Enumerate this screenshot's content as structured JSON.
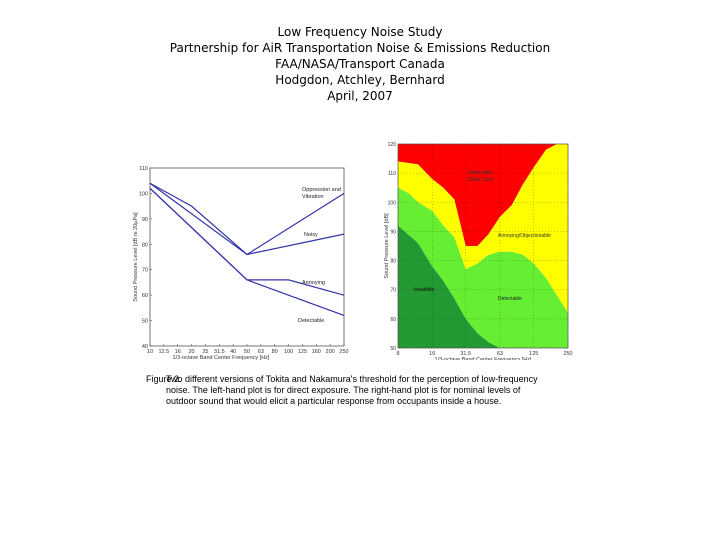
{
  "header": {
    "line1": "Low Frequency Noise Study",
    "line2": "Partnership for AiR Transportation Noise & Emissions Reduction",
    "line3": "FAA/NASA/Transport Canada",
    "line4": "Hodgdon, Atchley, Bernhard",
    "line5": "April, 2007"
  },
  "caption": {
    "label": "Figure 2.",
    "lines": [
      "Two different versions of Tokita and Nakamura's threshold for the perception of low-frequency",
      "noise.  The left-hand plot is for direct exposure.  The right-hand plot is for nominal levels of",
      "outdoor sound that would elicit a particular response from occupants inside a house."
    ]
  },
  "colors": {
    "line": "#3333aa",
    "red": "#ff0000",
    "yellow": "#ffff00",
    "lightgreen": "#66ee33",
    "darkgreen": "#229933"
  },
  "chart_data": [
    {
      "type": "line",
      "title": "",
      "xlabel": "1/3-octave Band Center Frequency [Hz]",
      "ylabel": "Sound Pressure Level [dB re 20µPa]",
      "x_ticks": [
        "10",
        "12.5",
        "16",
        "20",
        "25",
        "31.5",
        "40",
        "50",
        "63",
        "80",
        "100",
        "125",
        "160",
        "200",
        "250"
      ],
      "y_ticks": [
        40,
        50,
        60,
        70,
        80,
        90,
        100,
        110
      ],
      "ylim": [
        40,
        110
      ],
      "grid": false,
      "series": [
        {
          "name": "Oppression and Vibration",
          "x_index": [
            0,
            3,
            7,
            14
          ],
          "values": [
            104,
            95,
            76,
            100
          ]
        },
        {
          "name": "Noisy",
          "x_index": [
            0,
            7,
            14
          ],
          "values": [
            104,
            76,
            84
          ]
        },
        {
          "name": "Annoying",
          "x_index": [
            0,
            7,
            10,
            14
          ],
          "values": [
            102,
            66,
            66,
            60
          ]
        },
        {
          "name": "Detectable",
          "x_index": [
            0,
            7,
            10,
            14
          ],
          "values": [
            102,
            66,
            60,
            52
          ]
        }
      ]
    },
    {
      "type": "area",
      "title": "",
      "xlabel": "1/3-octave Band Center Frequency [Hz]",
      "ylabel": "Sound Pressure Level [dB]",
      "x_ticks": [
        "8",
        "16",
        "31.5",
        "63",
        "125",
        "250"
      ],
      "y_ticks": [
        50,
        60,
        70,
        80,
        90,
        100,
        110,
        120
      ],
      "ylim": [
        50,
        120
      ],
      "grid": true,
      "regions": [
        "Intolerable/Rattle Zone",
        "Annoying/Objectionable",
        "Detectable",
        "Inaudible"
      ],
      "boundaries": [
        {
          "name": "upper",
          "x": [
            8,
            12,
            16,
            20,
            25,
            31.5,
            40,
            50,
            63,
            80,
            100,
            125,
            160,
            200,
            250
          ],
          "values": [
            114,
            113,
            108,
            105,
            101,
            85,
            85,
            89,
            95,
            99,
            106,
            112,
            118,
            120,
            120
          ]
        },
        {
          "name": "middle",
          "x": [
            8,
            10,
            12,
            16,
            20,
            25,
            31.5,
            40,
            50,
            63,
            80,
            100,
            125,
            160,
            200,
            250
          ],
          "values": [
            105,
            103,
            100,
            97,
            92,
            88,
            77,
            79,
            82,
            83,
            83,
            82,
            79,
            74,
            68,
            62
          ]
        },
        {
          "name": "lower",
          "x": [
            8,
            12,
            16,
            20,
            25,
            31.5,
            40,
            50,
            63,
            80
          ],
          "values": [
            92,
            86,
            78,
            73,
            67,
            60,
            55,
            52,
            50,
            50
          ]
        }
      ]
    }
  ]
}
